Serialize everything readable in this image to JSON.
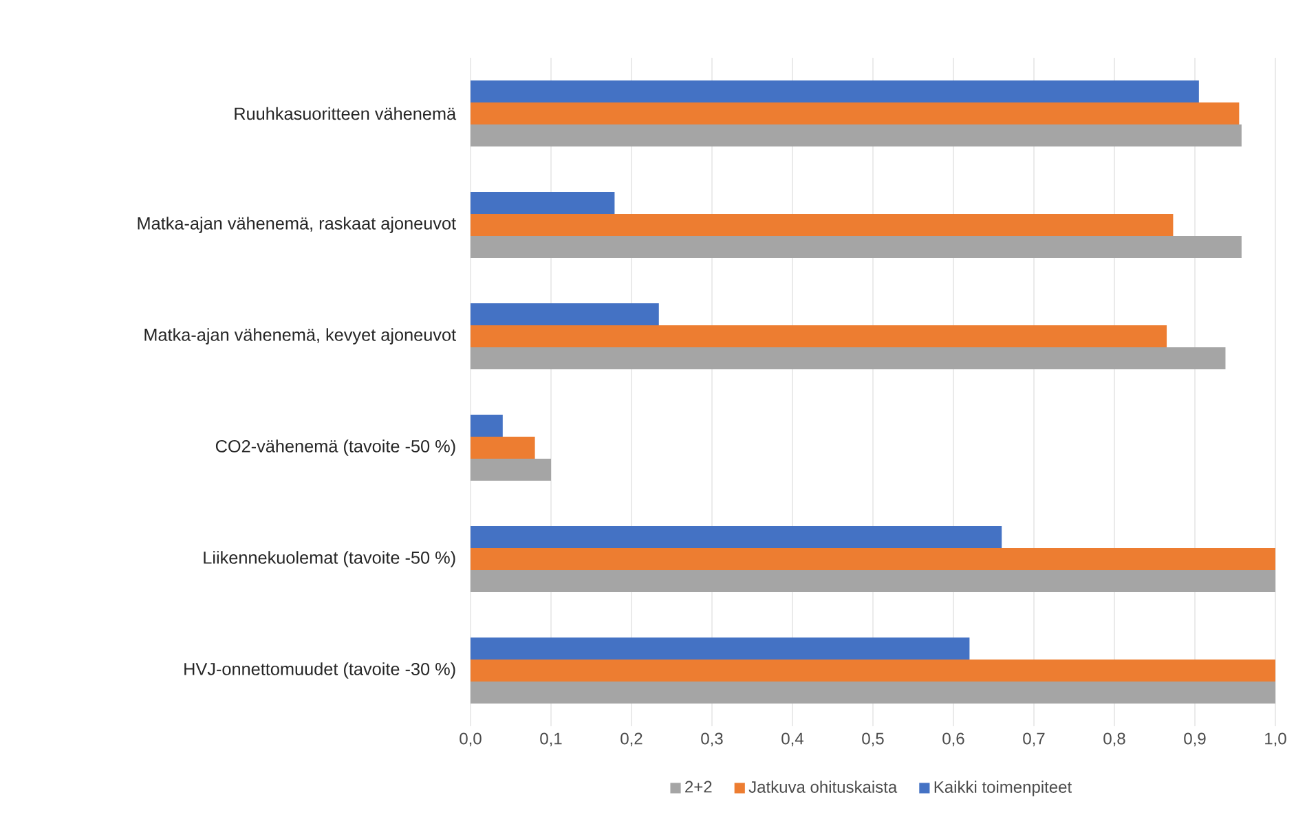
{
  "chart_data": {
    "type": "bar",
    "orientation": "horizontal",
    "categories": [
      "Ruuhkasuoritteen vähenemä",
      "Matka-ajan vähenemä, raskaat ajoneuvot",
      "Matka-ajan vähenemä, kevyet ajoneuvot",
      "CO2-vähenemä (tavoite -50 %)",
      "Liikennekuolemat (tavoite -50 %)",
      "HVJ-onnettomuudet (tavoite -30 %)"
    ],
    "series": [
      {
        "name": "2+2",
        "color": "#a5a5a5",
        "values": [
          0.958,
          0.958,
          0.938,
          0.1,
          1.0,
          1.0
        ]
      },
      {
        "name": "Jatkuva ohituskaista",
        "color": "#ed7d31",
        "values": [
          0.955,
          0.873,
          0.865,
          0.08,
          1.0,
          1.0
        ]
      },
      {
        "name": "Kaikki toimenpiteet",
        "color": "#4472c4",
        "values": [
          0.905,
          0.179,
          0.234,
          0.04,
          0.66,
          0.62
        ]
      }
    ],
    "xlim": [
      0,
      1
    ],
    "xticks": [
      {
        "value": 0,
        "label": "0,0"
      },
      {
        "value": 0.1,
        "label": "0,1"
      },
      {
        "value": 0.2,
        "label": "0,2"
      },
      {
        "value": 0.3,
        "label": "0,3"
      },
      {
        "value": 0.4,
        "label": "0,4"
      },
      {
        "value": 0.5,
        "label": "0,5"
      },
      {
        "value": 0.6,
        "label": "0,6"
      },
      {
        "value": 0.7,
        "label": "0,7"
      },
      {
        "value": 0.8,
        "label": "0,8"
      },
      {
        "value": 0.9,
        "label": "0,9"
      },
      {
        "value": 1.0,
        "label": "1,0"
      }
    ],
    "grid": "x",
    "legend": "bottom"
  }
}
